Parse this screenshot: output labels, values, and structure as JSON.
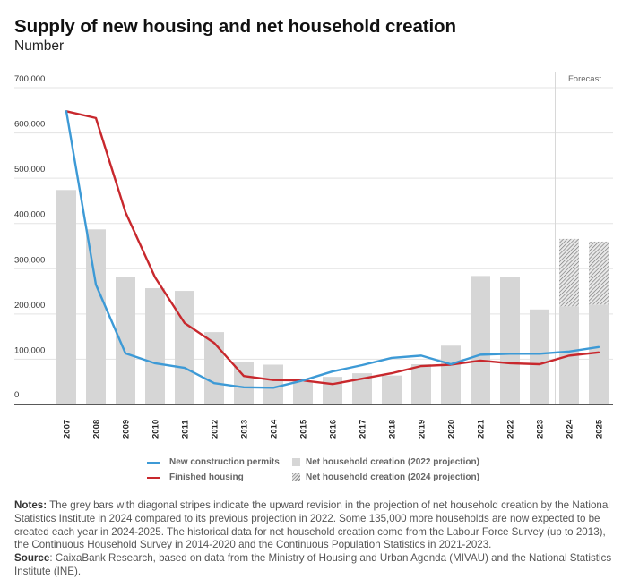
{
  "title": "Supply of new housing and net household creation",
  "subtitle": "Number",
  "forecast_label": "Forecast",
  "legend": {
    "permits": "New construction permits",
    "finished": "Finished housing",
    "household_2022": "Net household creation (2022 projection)",
    "household_2024": "Net household creation (2024 projection)"
  },
  "colors": {
    "permits": "#3d9ad6",
    "finished": "#c8282d",
    "bars": "#d6d6d6",
    "hatch": "#777777"
  },
  "notes": {
    "notes_label": "Notes:",
    "notes_text": " The grey bars with diagonal stripes indicate the upward revision in the projection of net household creation by the National Statistics Institute in 2024 compared to its previous projection in 2022. Some 135,000 more households are now expected to be created each year in 2024-2025. The historical data for net household creation come from the Labour Force Survey (up to 2013), the Continuous Household Survey in 2014-2020 and the Continuous Population Statistics in 2021-2023.",
    "source_label": "Source",
    "source_text": ": CaixaBank Research, based on data from the Ministry of Housing and Urban Agenda (MIVAU) and the National Statistics Institute (INE)."
  },
  "chart_data": {
    "type": "bar",
    "title": "Supply of new housing and net household creation",
    "ylabel": "Number",
    "xlabel": "",
    "ylim": [
      0,
      700000
    ],
    "yticks": [
      0,
      100000,
      200000,
      300000,
      400000,
      500000,
      600000,
      700000
    ],
    "ytick_labels": [
      "0",
      "100,000",
      "200,000",
      "300,000",
      "400,000",
      "500,000",
      "600,000",
      "700,000"
    ],
    "grid": true,
    "legend_position": "bottom",
    "forecast_start": "2024",
    "categories": [
      "2007",
      "2008",
      "2009",
      "2010",
      "2011",
      "2012",
      "2013",
      "2014",
      "2015",
      "2016",
      "2017",
      "2018",
      "2019",
      "2020",
      "2021",
      "2022",
      "2023",
      "2024",
      "2025"
    ],
    "series": [
      {
        "name": "Net household creation (2022 projection)",
        "type": "bar",
        "values": [
          474000,
          387000,
          281000,
          257000,
          251000,
          160000,
          93000,
          88000,
          50000,
          61000,
          69000,
          64000,
          89000,
          130000,
          284000,
          281000,
          210000,
          217000,
          221000
        ]
      },
      {
        "name": "Net household creation (2024 projection)",
        "type": "bar-stacked-hatched",
        "values": [
          null,
          null,
          null,
          null,
          null,
          null,
          null,
          null,
          null,
          null,
          null,
          null,
          null,
          null,
          null,
          null,
          null,
          366000,
          360000
        ]
      },
      {
        "name": "New construction permits",
        "type": "line",
        "values": [
          648000,
          265000,
          113000,
          91000,
          81000,
          47000,
          38000,
          37000,
          53000,
          73000,
          87000,
          103000,
          108000,
          89000,
          110000,
          112000,
          112000,
          117000,
          127000
        ]
      },
      {
        "name": "Finished housing",
        "type": "line",
        "values": [
          648000,
          633000,
          425000,
          281000,
          180000,
          136000,
          63000,
          54000,
          53000,
          45000,
          57000,
          69000,
          85000,
          88000,
          97000,
          91000,
          89000,
          108000,
          115000
        ]
      }
    ]
  }
}
